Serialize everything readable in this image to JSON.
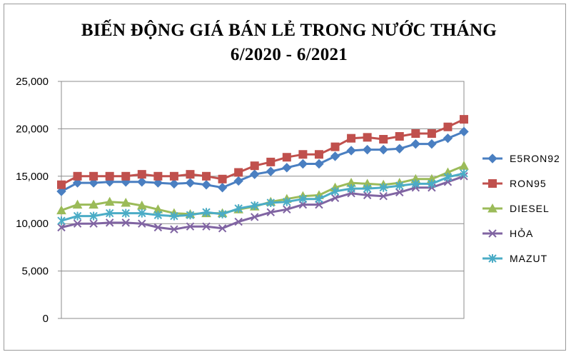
{
  "chart_data": {
    "type": "line",
    "title_line1": "BIẾN ĐỘNG GIÁ BÁN LẺ TRONG NƯỚC THÁNG",
    "title_line2": "6/2020 - 6/2021",
    "xlabel": "",
    "ylabel": "",
    "ylim": [
      0,
      25000
    ],
    "yticks": [
      0,
      5000,
      10000,
      15000,
      20000,
      25000
    ],
    "ytick_labels": [
      "0",
      "5,000",
      "10,000",
      "15,000",
      "20,000",
      "25,000"
    ],
    "grid": true,
    "legend_position": "right",
    "series": [
      {
        "name": "E5RON92",
        "color": "#4a7fc1",
        "marker": "diamond",
        "values": [
          13400,
          14300,
          14300,
          14400,
          14400,
          14400,
          14300,
          14200,
          14300,
          14100,
          13800,
          14500,
          15200,
          15500,
          15900,
          16300,
          16300,
          17100,
          17700,
          17800,
          17800,
          17900,
          18400,
          18400,
          19000,
          19700
        ]
      },
      {
        "name": "RON95",
        "color": "#c0504d",
        "marker": "square",
        "values": [
          14100,
          15000,
          15000,
          15000,
          15000,
          15200,
          15000,
          15000,
          15200,
          15000,
          14700,
          15400,
          16100,
          16500,
          17000,
          17300,
          17300,
          18100,
          19000,
          19100,
          18900,
          19200,
          19500,
          19500,
          20200,
          21000
        ]
      },
      {
        "name": "DIESEL",
        "color": "#9bbb59",
        "marker": "triangle",
        "values": [
          11400,
          12000,
          12000,
          12300,
          12200,
          11900,
          11500,
          11100,
          11000,
          11100,
          11100,
          11500,
          11800,
          12300,
          12600,
          12900,
          13000,
          13800,
          14300,
          14200,
          14100,
          14300,
          14700,
          14700,
          15400,
          16100
        ]
      },
      {
        "name": "HỎA",
        "color": "#8064a2",
        "marker": "x",
        "values": [
          9600,
          10000,
          10000,
          10100,
          10100,
          10000,
          9600,
          9400,
          9700,
          9700,
          9500,
          10200,
          10700,
          11200,
          11500,
          12000,
          12000,
          12700,
          13200,
          13000,
          12900,
          13300,
          13800,
          13800,
          14400,
          15000
        ]
      },
      {
        "name": "MAZUT",
        "color": "#4bacc6",
        "marker": "asterisk",
        "values": [
          10300,
          10800,
          10800,
          11100,
          11100,
          11100,
          10900,
          10800,
          10900,
          11200,
          11000,
          11600,
          11900,
          12200,
          12300,
          12600,
          12600,
          13400,
          13700,
          13700,
          13800,
          14000,
          14200,
          14200,
          14900,
          15300
        ]
      }
    ]
  }
}
